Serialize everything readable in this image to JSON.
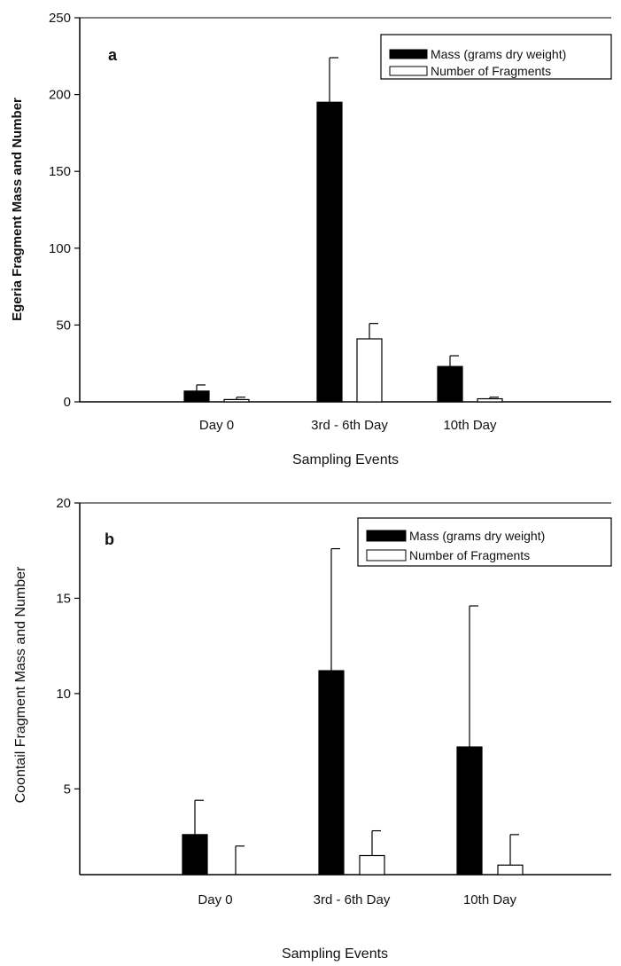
{
  "chart_data": [
    {
      "type": "bar",
      "panel_label": "a",
      "categories": [
        "Day 0",
        "3rd - 6th Day",
        "10th Day"
      ],
      "series": [
        {
          "name": "Mass (grams dry weight)",
          "fill": "#000000",
          "values": [
            7,
            195,
            23
          ],
          "errors": [
            4,
            29,
            7
          ]
        },
        {
          "name": "Number of Fragments",
          "fill": "#ffffff",
          "values": [
            1.5,
            41,
            2
          ],
          "errors": [
            1.5,
            10,
            1
          ]
        }
      ],
      "xlabel": "Sampling Events",
      "ylabel": "Egeria Fragment Mass and Number",
      "ylim": [
        0,
        250
      ],
      "yticks": [
        0,
        50,
        100,
        150,
        200,
        250
      ],
      "legend_position": "top-right",
      "grid": false
    },
    {
      "type": "bar",
      "panel_label": "b",
      "categories": [
        "Day 0",
        "3rd - 6th Day",
        "10th Day"
      ],
      "series": [
        {
          "name": "Mass (grams dry weight)",
          "fill": "#000000",
          "values": [
            2.6,
            11.2,
            7.2
          ],
          "errors": [
            1.8,
            6.4,
            7.4
          ]
        },
        {
          "name": "Number of Fragments",
          "fill": "#ffffff",
          "values": [
            0,
            1.5,
            1.0
          ],
          "errors": [
            1.5,
            1.3,
            1.6
          ]
        }
      ],
      "xlabel": "Sampling Events",
      "ylabel": "Coontail Fragment Mass and Number",
      "ylim": [
        0.5,
        20
      ],
      "yticks": [
        5,
        10,
        15,
        20
      ],
      "legend_position": "top-right",
      "grid": false
    }
  ]
}
